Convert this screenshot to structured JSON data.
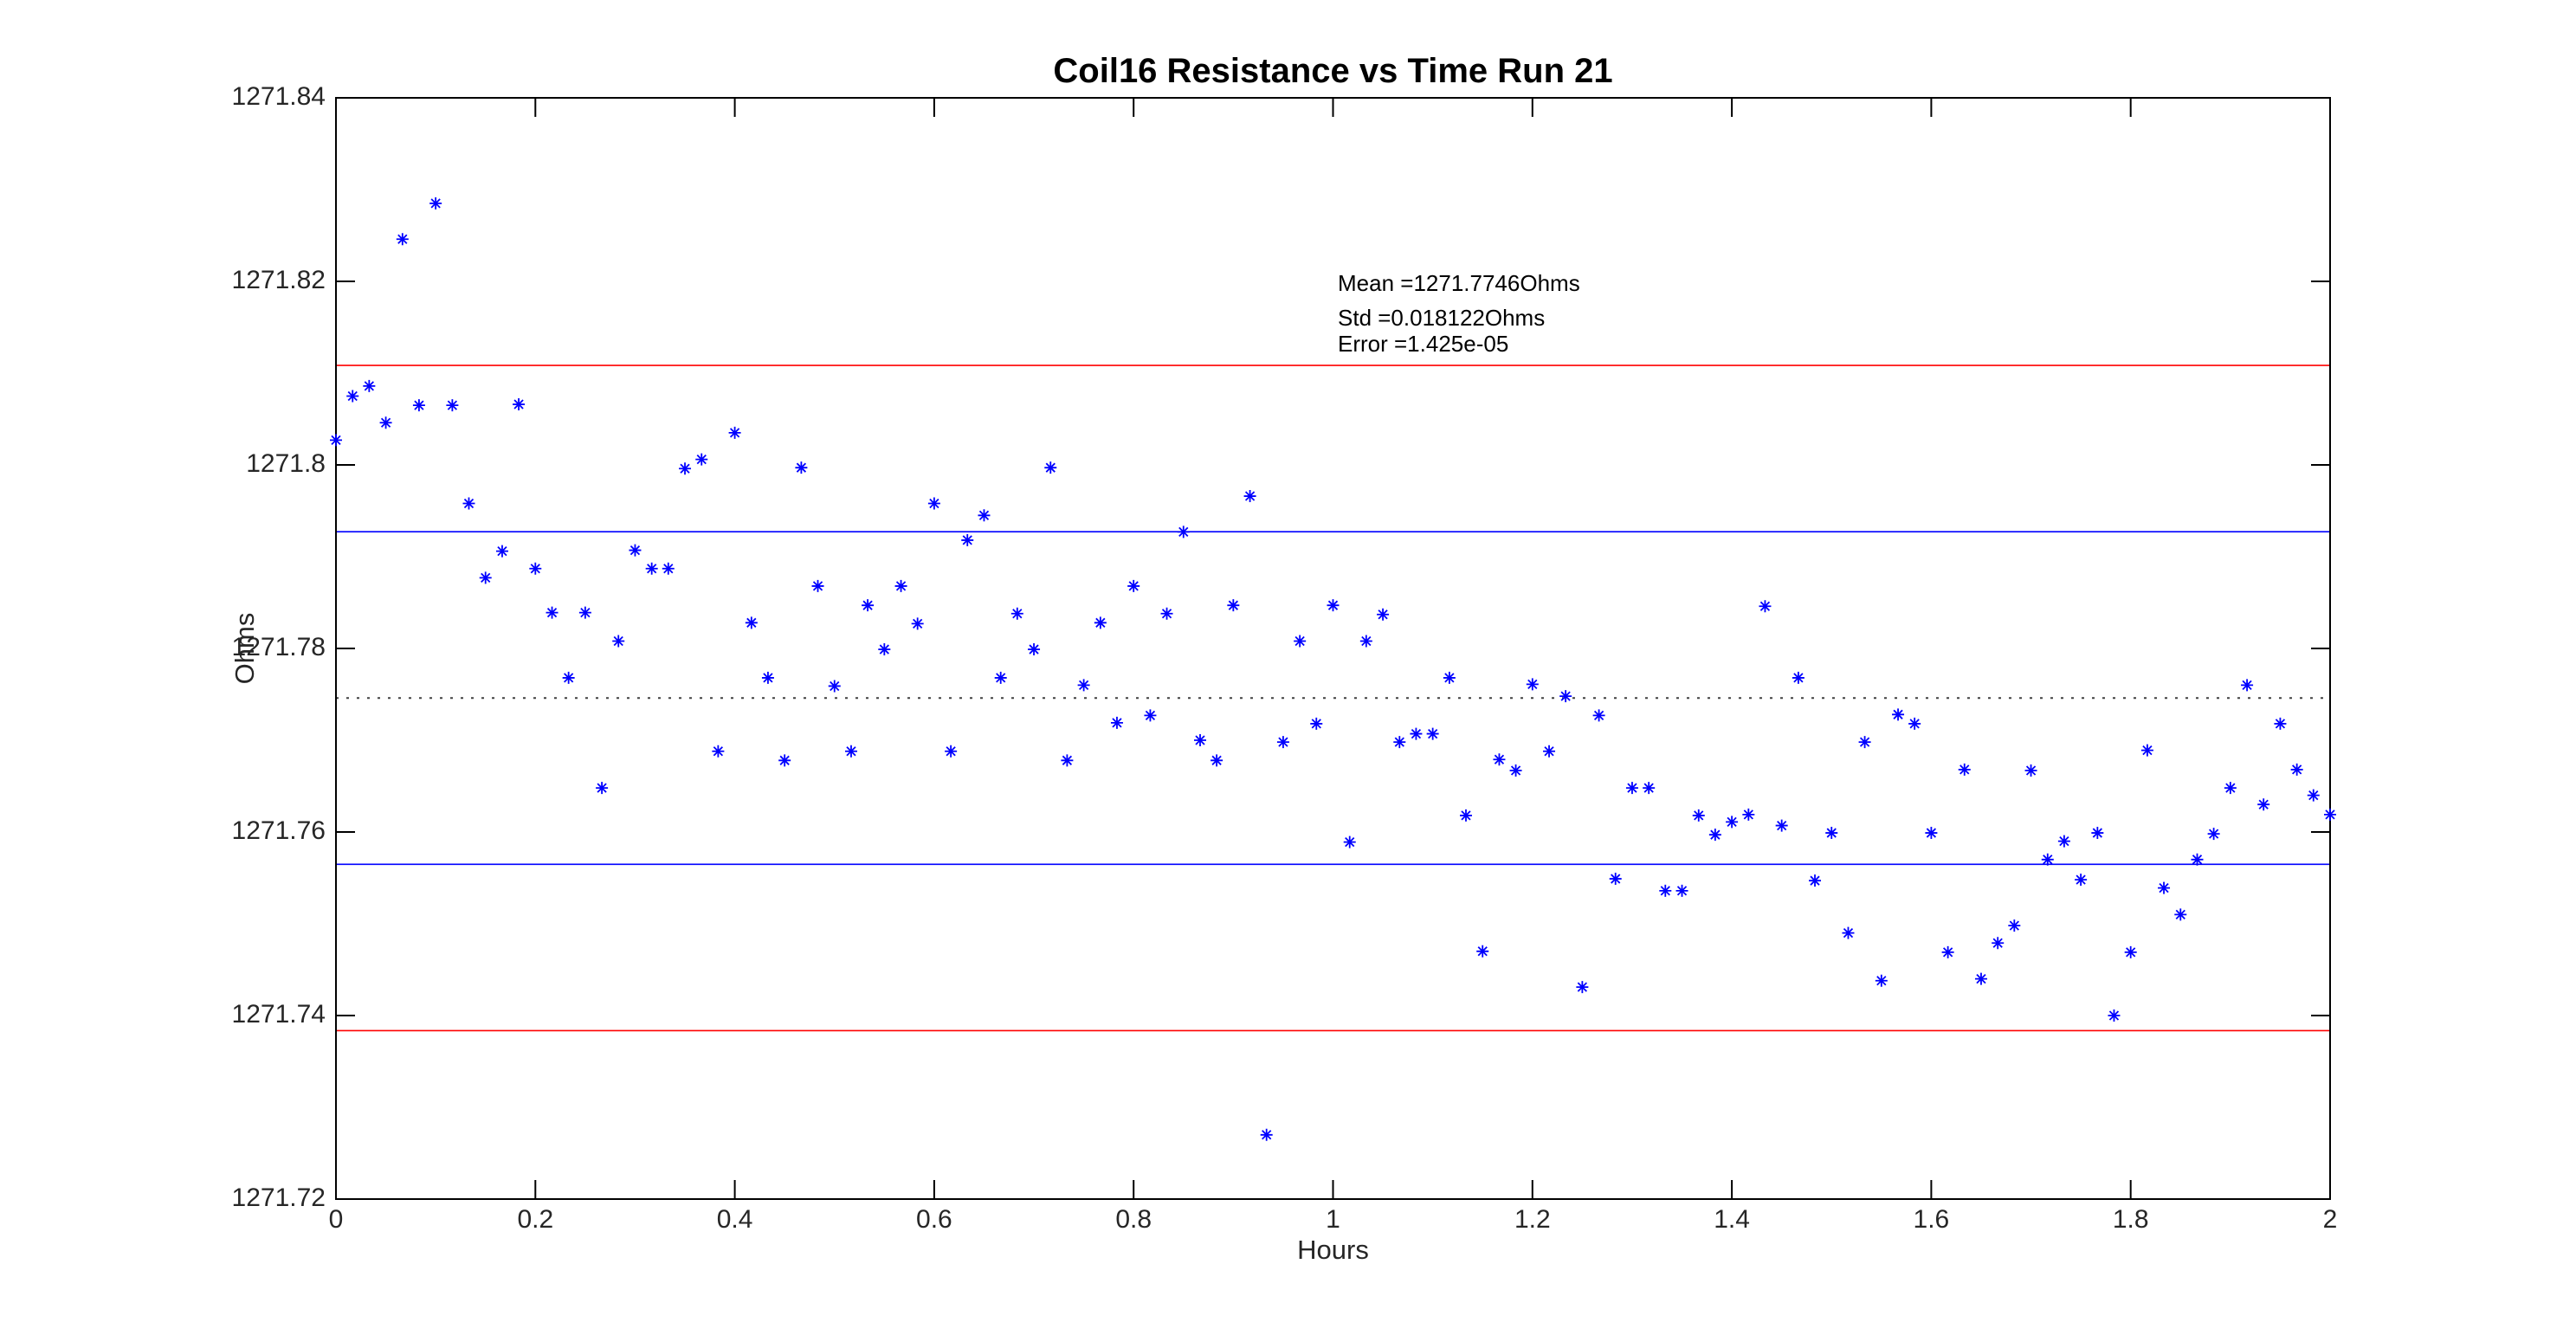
{
  "title": "Coil16 Resistance vs Time Run 21",
  "annotation": {
    "mean_line": "Mean =1271.7746Ohms",
    "std_line": "Std =0.018122Ohms",
    "error_line": "Error =1.425e-05"
  },
  "colors": {
    "marker": "#0000ff",
    "sigma_line": "#0000ff",
    "two_sigma_line": "#ff0000",
    "mean_line": "#404040",
    "axis": "#000000",
    "tick_text": "#262626"
  },
  "chart_data": {
    "type": "scatter",
    "title": "Coil16 Resistance vs Time Run 21",
    "xlabel": "Hours",
    "ylabel": "Ohms",
    "xlim": [
      0,
      2
    ],
    "ylim": [
      1271.72,
      1271.84
    ],
    "grid": false,
    "marker": "asterisk",
    "xticks": [
      0,
      0.2,
      0.4,
      0.6,
      0.8,
      1,
      1.2,
      1.4,
      1.6,
      1.8,
      2
    ],
    "xtick_labels": [
      "0",
      "0.2",
      "0.4",
      "0.6",
      "0.8",
      "1",
      "1.2",
      "1.4",
      "1.6",
      "1.8",
      "2"
    ],
    "yticks": [
      1271.72,
      1271.74,
      1271.76,
      1271.78,
      1271.8,
      1271.82,
      1271.84
    ],
    "ytick_labels": [
      "1271.72",
      "1271.74",
      "1271.76",
      "1271.78",
      "1271.8",
      "1271.82",
      "1271.84"
    ],
    "stats": {
      "mean": 1271.7746,
      "std": 0.018122,
      "error": 1.425e-05
    },
    "reference_lines": [
      {
        "name": "mean-plus-2std",
        "value": 1271.810844,
        "color": "#ff0000",
        "style": "solid"
      },
      {
        "name": "mean-plus-1std",
        "value": 1271.792722,
        "color": "#0000ff",
        "style": "solid"
      },
      {
        "name": "mean",
        "value": 1271.7746,
        "color": "#404040",
        "style": "dotted"
      },
      {
        "name": "mean-minus-1std",
        "value": 1271.756478,
        "color": "#0000ff",
        "style": "solid"
      },
      {
        "name": "mean-minus-2std",
        "value": 1271.738356,
        "color": "#ff0000",
        "style": "solid"
      }
    ],
    "points": [
      [
        0.0,
        1271.8027
      ],
      [
        0.0167,
        1271.8075
      ],
      [
        0.0333,
        1271.8086
      ],
      [
        0.05,
        1271.8046
      ],
      [
        0.0667,
        1271.8246
      ],
      [
        0.0833,
        1271.8065
      ],
      [
        0.1,
        1271.8285
      ],
      [
        0.1167,
        1271.8065
      ],
      [
        0.1333,
        1271.7958
      ],
      [
        0.15,
        1271.7877
      ],
      [
        0.1667,
        1271.7906
      ],
      [
        0.1833,
        1271.8066
      ],
      [
        0.2,
        1271.7887
      ],
      [
        0.2167,
        1271.7839
      ],
      [
        0.2333,
        1271.7768
      ],
      [
        0.25,
        1271.7839
      ],
      [
        0.2667,
        1271.7648
      ],
      [
        0.2833,
        1271.7808
      ],
      [
        0.3,
        1271.7907
      ],
      [
        0.3167,
        1271.7887
      ],
      [
        0.3333,
        1271.7887
      ],
      [
        0.35,
        1271.7996
      ],
      [
        0.3667,
        1271.8006
      ],
      [
        0.3833,
        1271.7688
      ],
      [
        0.4,
        1271.8035
      ],
      [
        0.4167,
        1271.7828
      ],
      [
        0.4333,
        1271.7768
      ],
      [
        0.45,
        1271.7678
      ],
      [
        0.4667,
        1271.7997
      ],
      [
        0.4833,
        1271.7868
      ],
      [
        0.5,
        1271.7759
      ],
      [
        0.5167,
        1271.7688
      ],
      [
        0.5333,
        1271.7847
      ],
      [
        0.55,
        1271.7799
      ],
      [
        0.5667,
        1271.7868
      ],
      [
        0.5833,
        1271.7827
      ],
      [
        0.6,
        1271.7958
      ],
      [
        0.6167,
        1271.7688
      ],
      [
        0.6333,
        1271.7918
      ],
      [
        0.65,
        1271.7945
      ],
      [
        0.6667,
        1271.7768
      ],
      [
        0.6833,
        1271.7838
      ],
      [
        0.7,
        1271.7799
      ],
      [
        0.7167,
        1271.7997
      ],
      [
        0.7333,
        1271.7678
      ],
      [
        0.75,
        1271.776
      ],
      [
        0.7667,
        1271.7828
      ],
      [
        0.7833,
        1271.7719
      ],
      [
        0.8,
        1271.7868
      ],
      [
        0.8167,
        1271.7727
      ],
      [
        0.8333,
        1271.7838
      ],
      [
        0.85,
        1271.7927
      ],
      [
        0.8667,
        1271.77
      ],
      [
        0.8833,
        1271.7678
      ],
      [
        0.9,
        1271.7847
      ],
      [
        0.9167,
        1271.7966
      ],
      [
        0.9333,
        1271.727
      ],
      [
        0.95,
        1271.7698
      ],
      [
        0.9667,
        1271.7808
      ],
      [
        0.9833,
        1271.7718
      ],
      [
        1.0,
        1271.7847
      ],
      [
        1.0167,
        1271.7589
      ],
      [
        1.0333,
        1271.7808
      ],
      [
        1.05,
        1271.7837
      ],
      [
        1.0667,
        1271.7698
      ],
      [
        1.0833,
        1271.7707
      ],
      [
        1.1,
        1271.7707
      ],
      [
        1.1167,
        1271.7768
      ],
      [
        1.1333,
        1271.7618
      ],
      [
        1.15,
        1271.747
      ],
      [
        1.1667,
        1271.7679
      ],
      [
        1.1833,
        1271.7667
      ],
      [
        1.2,
        1271.7761
      ],
      [
        1.2167,
        1271.7688
      ],
      [
        1.2333,
        1271.7748
      ],
      [
        1.25,
        1271.7431
      ],
      [
        1.2667,
        1271.7727
      ],
      [
        1.2833,
        1271.7549
      ],
      [
        1.3,
        1271.7648
      ],
      [
        1.3167,
        1271.7648
      ],
      [
        1.3333,
        1271.7536
      ],
      [
        1.35,
        1271.7536
      ],
      [
        1.3667,
        1271.7618
      ],
      [
        1.3833,
        1271.7597
      ],
      [
        1.4,
        1271.7611
      ],
      [
        1.4167,
        1271.7619
      ],
      [
        1.4333,
        1271.7846
      ],
      [
        1.45,
        1271.7607
      ],
      [
        1.4667,
        1271.7768
      ],
      [
        1.4833,
        1271.7547
      ],
      [
        1.5,
        1271.7599
      ],
      [
        1.5167,
        1271.749
      ],
      [
        1.5333,
        1271.7698
      ],
      [
        1.55,
        1271.7438
      ],
      [
        1.5667,
        1271.7728
      ],
      [
        1.5833,
        1271.7718
      ],
      [
        1.6,
        1271.7599
      ],
      [
        1.6167,
        1271.7469
      ],
      [
        1.6333,
        1271.7668
      ],
      [
        1.65,
        1271.744
      ],
      [
        1.6667,
        1271.7479
      ],
      [
        1.6833,
        1271.7498
      ],
      [
        1.7,
        1271.7667
      ],
      [
        1.7167,
        1271.757
      ],
      [
        1.7333,
        1271.759
      ],
      [
        1.75,
        1271.7548
      ],
      [
        1.7667,
        1271.7599
      ],
      [
        1.7833,
        1271.74
      ],
      [
        1.8,
        1271.7469
      ],
      [
        1.8167,
        1271.7689
      ],
      [
        1.8333,
        1271.7539
      ],
      [
        1.85,
        1271.751
      ],
      [
        1.8667,
        1271.757
      ],
      [
        1.8833,
        1271.7598
      ],
      [
        1.9,
        1271.7648
      ],
      [
        1.9167,
        1271.776
      ],
      [
        1.9333,
        1271.763
      ],
      [
        1.95,
        1271.7718
      ],
      [
        1.9667,
        1271.7668
      ],
      [
        1.9833,
        1271.764
      ],
      [
        2.0,
        1271.7619
      ]
    ]
  }
}
